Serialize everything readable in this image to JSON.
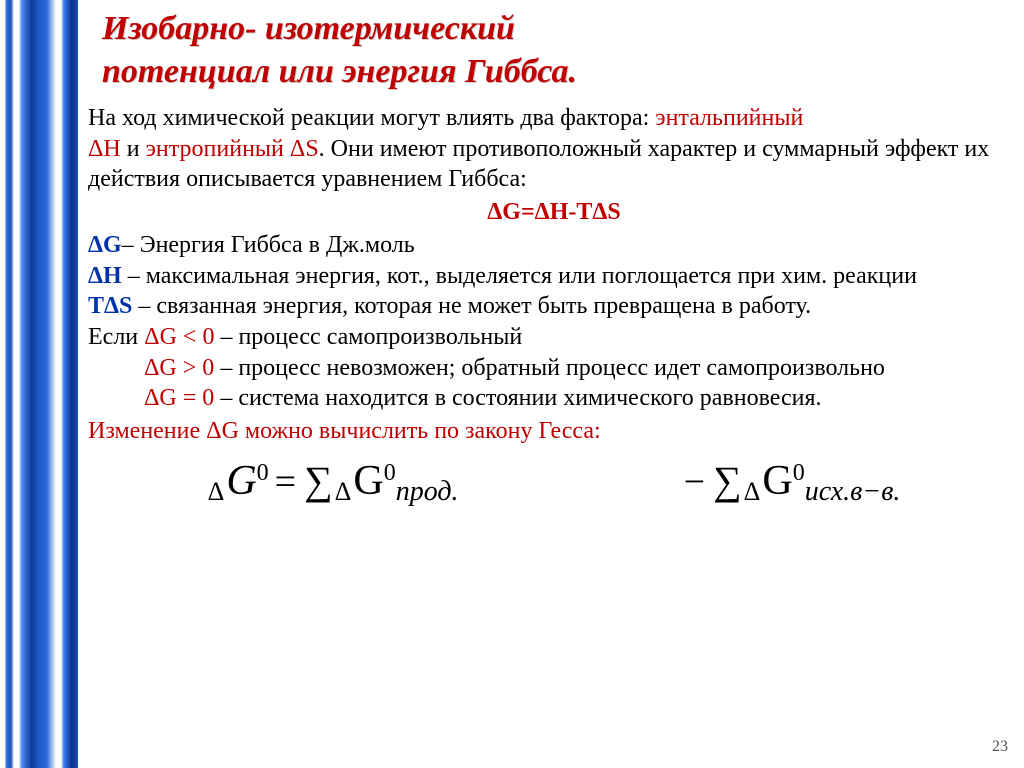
{
  "title_line1": "Изобарно- изотермический",
  "title_line2": "потенциал или энергия Гиббса.",
  "p1_a": "На ход химической реакции могут влиять два фактора: ",
  "p1_b": "энтальпийный",
  "p1_c": "ΔН",
  "p1_d": " и ",
  "p1_e": "энтропийный ΔS",
  "p1_f": ". Они имеют противоположный характер и суммарный эффект их действия описывается уравнением Гиббса:",
  "eq_main": "ΔG=ΔH-TΔS",
  "dG": "ΔG",
  "dG_desc": "– Энергия Гиббса в Дж.моль",
  "dH": "ΔН",
  "dH_desc": " – максимальная энергия, кот., выделяется или поглощается при хим. реакции",
  "TdS": "TΔS",
  "TdS_desc": " – связанная энергия, которая не может быть превращена в работу.",
  "if_label": "Если ",
  "cond1": "ΔG < 0",
  "cond1_desc": " – процесс самопроизвольный",
  "cond2": "ΔG > 0",
  "cond2_desc": " – процесс невозможен; обратный процесс идет самопроизвольно",
  "cond3": "ΔG = 0",
  "cond3_desc": " – система находится в состоянии химического равновесия.",
  "hess": "Изменение ΔG можно вычислить по закону Гесса:",
  "f_delta": "Δ",
  "f_G": "G",
  "f_sup0": "0",
  "f_eq": "=",
  "f_sigma": "∑",
  "f_minus": "−",
  "f_sub_prod": "прод.",
  "f_sub_isx": "исх.в−в.",
  "page_num": "23",
  "colors": {
    "title": "#c00000",
    "red": "#c00000",
    "blue": "#0033aa",
    "text": "#000000",
    "bg": "#ffffff"
  }
}
